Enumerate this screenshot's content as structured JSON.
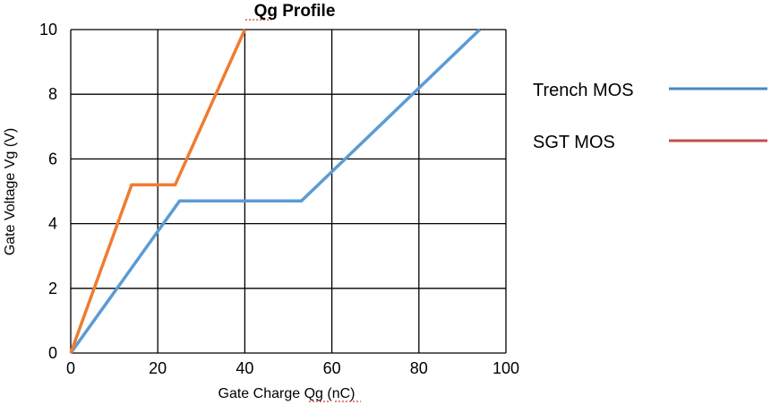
{
  "chart_data": {
    "type": "line",
    "title": "Qg Profile",
    "xlabel": "Gate Charge Qg (nC)",
    "ylabel": "Gate Voltage Vg (V)",
    "xlim": [
      0,
      100
    ],
    "ylim": [
      0,
      10
    ],
    "xticks": [
      "0",
      "20",
      "40",
      "60",
      "80",
      "100"
    ],
    "yticks": [
      "0",
      "2",
      "4",
      "6",
      "8",
      "10"
    ],
    "grid": true,
    "legend_position": "right",
    "series": [
      {
        "name": "Trench MOS",
        "color": "#5b9bd5",
        "legend_color": "#4a86c5",
        "x": [
          0,
          25,
          53,
          94
        ],
        "y": [
          0,
          4.7,
          4.7,
          10
        ]
      },
      {
        "name": "SGT  MOS",
        "color": "#ed7d31",
        "legend_color": "#c0504d",
        "x": [
          0,
          14,
          24,
          40
        ],
        "y": [
          0,
          5.2,
          5.2,
          10
        ]
      }
    ]
  }
}
